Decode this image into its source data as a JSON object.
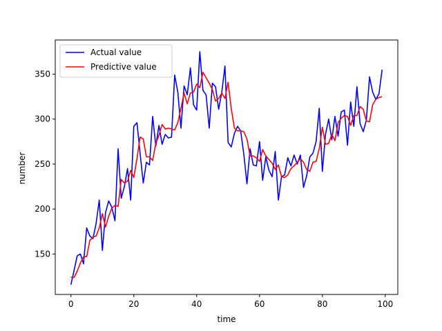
{
  "chart_data": {
    "type": "line",
    "title": "",
    "xlabel": "time",
    "ylabel": "number",
    "xlim": [
      -5,
      104
    ],
    "ylim": [
      105,
      388
    ],
    "xticks": [
      0,
      20,
      40,
      60,
      80,
      100
    ],
    "yticks": [
      150,
      200,
      250,
      300,
      350
    ],
    "grid": false,
    "legend_position": "top-left",
    "x": [
      0,
      1,
      2,
      3,
      4,
      5,
      6,
      7,
      8,
      9,
      10,
      11,
      12,
      13,
      14,
      15,
      16,
      17,
      18,
      19,
      20,
      21,
      22,
      23,
      24,
      25,
      26,
      27,
      28,
      29,
      30,
      31,
      32,
      33,
      34,
      35,
      36,
      37,
      38,
      39,
      40,
      41,
      42,
      43,
      44,
      45,
      46,
      47,
      48,
      49,
      50,
      51,
      52,
      53,
      54,
      55,
      56,
      57,
      58,
      59,
      60,
      61,
      62,
      63,
      64,
      65,
      66,
      67,
      68,
      69,
      70,
      71,
      72,
      73,
      74,
      75,
      76,
      77,
      78,
      79,
      80,
      81,
      82,
      83,
      84,
      85,
      86,
      87,
      88,
      89,
      90,
      91,
      92,
      93,
      94,
      95,
      96,
      97,
      98,
      99
    ],
    "series": [
      {
        "name": "Actual value",
        "color": "#0000ff",
        "values": [
          116,
          132,
          148,
          150,
          139,
          179,
          170,
          167,
          184,
          210,
          154,
          196,
          209,
          202,
          187,
          267,
          212,
          225,
          245,
          210,
          292,
          296,
          262,
          229,
          252,
          249,
          303,
          270,
          293,
          272,
          283,
          279,
          280,
          349,
          330,
          290,
          337,
          327,
          357,
          316,
          310,
          375,
          332,
          327,
          290,
          340,
          336,
          311,
          330,
          359,
          274,
          269,
          284,
          292,
          287,
          261,
          228,
          267,
          249,
          248,
          275,
          232,
          258,
          243,
          236,
          264,
          210,
          236,
          238,
          257,
          248,
          260,
          250,
          260,
          224,
          237,
          258,
          262,
          275,
          312,
          242,
          283,
          300,
          277,
          303,
          281,
          308,
          310,
          271,
          319,
          292,
          336,
          295,
          286,
          299,
          347,
          330,
          322,
          328,
          355
        ]
      },
      {
        "name": "Predictive value",
        "color": "#ff0000",
        "values": [
          124,
          124,
          131,
          140,
          147,
          147,
          165,
          169,
          170,
          179,
          195,
          180,
          192,
          201,
          204,
          203,
          233,
          229,
          231,
          243,
          235,
          256,
          280,
          278,
          258,
          258,
          254,
          273,
          282,
          294,
          289,
          290,
          289,
          288,
          296,
          312,
          329,
          317,
          329,
          330,
          339,
          335,
          352,
          346,
          340,
          333,
          320,
          323,
          329,
          323,
          341,
          312,
          290,
          287,
          287,
          286,
          278,
          259,
          259,
          257,
          253,
          266,
          259,
          255,
          251,
          244,
          249,
          236,
          235,
          238,
          245,
          248,
          252,
          256,
          252,
          244,
          242,
          252,
          253,
          267,
          291,
          272,
          273,
          283,
          276,
          296,
          301,
          304,
          303,
          293,
          304,
          304,
          314,
          311,
          298,
          297,
          316,
          322,
          324,
          325
        ]
      }
    ]
  }
}
